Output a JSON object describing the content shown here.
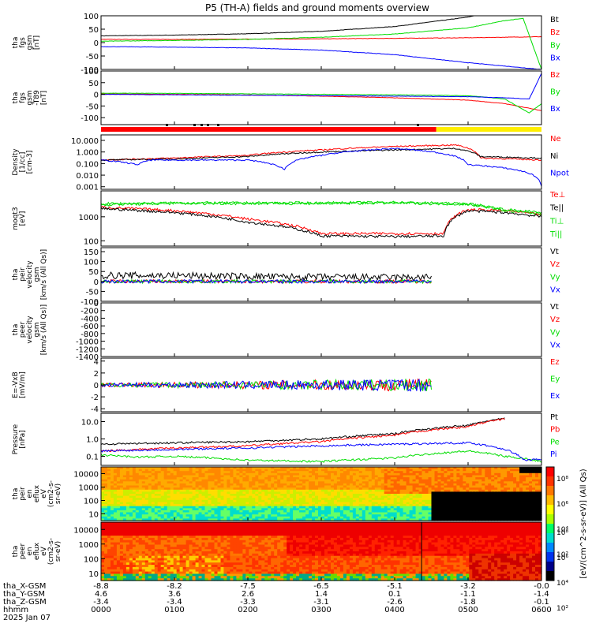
{
  "title": "P5 (TH-A) fields and ground moments overview",
  "colors": {
    "black": "#000000",
    "red": "#ff0000",
    "green": "#00dd00",
    "blue": "#0000ff",
    "yellow": "#ffee00"
  },
  "chart_data": [
    {
      "type": "line",
      "name": "fgs",
      "ylabel": [
        "tha",
        "fgs",
        "gsm",
        "[nT]"
      ],
      "yticks": [
        "100",
        "50",
        "0",
        "-50",
        "-100"
      ],
      "ylim": [
        -100,
        100
      ],
      "series": [
        {
          "name": "Bt",
          "color": "#000000",
          "x": [
            0,
            60,
            120,
            180,
            240,
            300,
            360
          ],
          "values": [
            25,
            28,
            33,
            42,
            60,
            95,
            160
          ]
        },
        {
          "name": "Bz",
          "color": "#ff0000",
          "x": [
            0,
            60,
            120,
            180,
            240,
            300,
            360
          ],
          "values": [
            12,
            12,
            13,
            14,
            16,
            18,
            22
          ]
        },
        {
          "name": "By",
          "color": "#00dd00",
          "x": [
            0,
            60,
            120,
            180,
            240,
            300,
            330,
            345,
            360
          ],
          "values": [
            5,
            8,
            12,
            20,
            32,
            55,
            82,
            90,
            -100
          ]
        },
        {
          "name": "Bx",
          "color": "#0000ff",
          "x": [
            0,
            60,
            120,
            180,
            240,
            300,
            360
          ],
          "values": [
            -15,
            -17,
            -20,
            -28,
            -45,
            -75,
            -100
          ]
        }
      ]
    },
    {
      "type": "line",
      "name": "fgs-dsl",
      "ylabel": [
        "tha",
        "fgs",
        "gsm",
        "-T89",
        "[nT]"
      ],
      "yticks": [
        "100",
        "50",
        "0",
        "-50",
        "-100"
      ],
      "ylim": [
        -130,
        100
      ],
      "series": [
        {
          "name": "Bz",
          "color": "#ff0000",
          "x": [
            0,
            60,
            120,
            180,
            240,
            300,
            330,
            350,
            360
          ],
          "values": [
            2,
            0,
            -3,
            -8,
            -15,
            -25,
            -40,
            -60,
            -70
          ]
        },
        {
          "name": "By",
          "color": "#00dd00",
          "x": [
            0,
            60,
            120,
            180,
            240,
            300,
            330,
            350,
            360
          ],
          "values": [
            5,
            4,
            2,
            0,
            -2,
            -6,
            -20,
            -80,
            -40
          ]
        },
        {
          "name": "Bx",
          "color": "#0000ff",
          "x": [
            0,
            60,
            120,
            180,
            240,
            300,
            330,
            350,
            360
          ],
          "values": [
            0,
            -2,
            -4,
            -6,
            -8,
            -10,
            -15,
            -20,
            90
          ]
        }
      ]
    },
    {
      "type": "line",
      "name": "density",
      "ylabel": [
        "Density",
        "[1/cc]",
        "[cm-3]"
      ],
      "yticks": [
        "10.000",
        "1.000",
        "0.100",
        "0.010",
        "0.001"
      ],
      "scale": "log",
      "ylim": [
        0.0006,
        30
      ],
      "series": [
        {
          "name": "Ne",
          "color": "#ff0000",
          "x": [
            0,
            60,
            120,
            180,
            240,
            290,
            310,
            360
          ],
          "values": [
            0.2,
            0.3,
            0.5,
            1.5,
            3.0,
            4.0,
            0.3,
            0.2
          ]
        },
        {
          "name": "Ni",
          "color": "#000000",
          "x": [
            0,
            60,
            120,
            180,
            240,
            290,
            310,
            360
          ],
          "values": [
            0.2,
            0.25,
            0.4,
            1.0,
            1.5,
            2.0,
            0.4,
            0.3
          ]
        },
        {
          "name": "Npot",
          "color": "#0000ff",
          "x": [
            0,
            30,
            40,
            60,
            120,
            150,
            180,
            240,
            300,
            360
          ],
          "values": [
            0.2,
            0.08,
            0.2,
            0.2,
            0.2,
            0.03,
            0.5,
            2.0,
            0.08,
            0.001
          ]
        }
      ]
    },
    {
      "type": "line",
      "name": "temperature",
      "ylabel": [
        "moqt3",
        "[eV]"
      ],
      "yticks": [
        "1000",
        "100"
      ],
      "scale": "log",
      "ylim": [
        60,
        12000
      ],
      "series": [
        {
          "name": "Te⊥",
          "color": "#ff0000",
          "x": [
            0,
            60,
            120,
            180,
            240,
            280,
            300,
            330,
            360
          ],
          "values": [
            2500,
            1800,
            800,
            200,
            200,
            200,
            2000,
            1800,
            1200
          ]
        },
        {
          "name": "Te||",
          "color": "#000000",
          "x": [
            0,
            60,
            120,
            180,
            240,
            280,
            300,
            330,
            360
          ],
          "values": [
            2200,
            1500,
            600,
            160,
            150,
            160,
            1800,
            1500,
            1000
          ]
        },
        {
          "name": "Ti⊥",
          "color": "#00dd00",
          "x": [
            0,
            60,
            120,
            180,
            240,
            300,
            330,
            360
          ],
          "values": [
            3500,
            3800,
            3800,
            3800,
            4000,
            3500,
            2000,
            1500
          ]
        },
        {
          "name": "Ti||",
          "color": "#00dd00",
          "x": [
            0,
            60,
            120,
            180,
            240,
            300,
            330,
            360
          ],
          "values": [
            3200,
            3600,
            3600,
            3600,
            3800,
            3300,
            1800,
            1300
          ]
        }
      ]
    },
    {
      "type": "line",
      "name": "peir-velocity",
      "ylabel": [
        "tha",
        "peir",
        "velocity",
        "gsm",
        "[km/s (All Qs)]"
      ],
      "yticks": [
        "150",
        "100",
        "50",
        "0",
        "-50",
        "-100"
      ],
      "ylim": [
        -100,
        170
      ],
      "series": [
        {
          "name": "Vt",
          "color": "#000000",
          "x": [
            0,
            60,
            120,
            180,
            240,
            270
          ],
          "values": [
            30,
            30,
            25,
            22,
            20,
            20
          ]
        },
        {
          "name": "Vz",
          "color": "#ff0000",
          "x": [
            0,
            60,
            120,
            180,
            240,
            270
          ],
          "values": [
            0,
            0,
            0,
            0,
            0,
            0
          ]
        },
        {
          "name": "Vy",
          "color": "#00dd00",
          "x": [
            0,
            60,
            120,
            180,
            240,
            270
          ],
          "values": [
            0,
            0,
            0,
            0,
            0,
            0
          ]
        },
        {
          "name": "Vx",
          "color": "#0000ff",
          "x": [
            0,
            60,
            120,
            180,
            240,
            270
          ],
          "values": [
            0,
            0,
            0,
            0,
            0,
            0
          ]
        }
      ]
    },
    {
      "type": "line",
      "name": "peer-velocity",
      "ylabel": [
        "tha",
        "peer",
        "velocity",
        "gsm",
        "[km/s (All Qs)]"
      ],
      "yticks": [
        "0",
        "-200",
        "-400",
        "-600",
        "-800",
        "-1000",
        "-1200",
        "-1400"
      ],
      "ylim": [
        -1400,
        0
      ],
      "series": [
        {
          "name": "Vt",
          "color": "#000000",
          "x": [],
          "values": []
        },
        {
          "name": "Vz",
          "color": "#ff0000",
          "x": [],
          "values": []
        },
        {
          "name": "Vy",
          "color": "#00dd00",
          "x": [],
          "values": []
        },
        {
          "name": "Vx",
          "color": "#0000ff",
          "x": [],
          "values": []
        }
      ]
    },
    {
      "type": "line",
      "name": "efield",
      "ylabel": [
        "E=-VxB",
        "[mV/m]"
      ],
      "yticks": [
        "4",
        "2",
        "0",
        "-2",
        "-4"
      ],
      "ylim": [
        -4.5,
        4.5
      ],
      "series": [
        {
          "name": "Ez",
          "color": "#ff0000",
          "x": [
            0,
            60,
            120,
            180,
            240,
            270
          ],
          "values": [
            0,
            0,
            0,
            0,
            0,
            0
          ]
        },
        {
          "name": "Ey",
          "color": "#00dd00",
          "x": [
            0,
            60,
            120,
            180,
            240,
            270
          ],
          "values": [
            0,
            0,
            0,
            0,
            0,
            0
          ]
        },
        {
          "name": "Ex",
          "color": "#0000ff",
          "x": [
            0,
            60,
            120,
            180,
            240,
            270
          ],
          "values": [
            0,
            0,
            0,
            0,
            0,
            0
          ]
        }
      ]
    },
    {
      "type": "line",
      "name": "pressure",
      "ylabel": [
        "Pressure",
        "[nPa]"
      ],
      "yticks": [
        "10.0",
        "1.0",
        "0.1"
      ],
      "scale": "log",
      "ylim": [
        0.03,
        30
      ],
      "series": [
        {
          "name": "Pt",
          "color": "#000000",
          "x": [
            0,
            60,
            120,
            180,
            240,
            300,
            330
          ],
          "values": [
            0.5,
            0.6,
            0.7,
            1.0,
            2.0,
            6.0,
            15
          ]
        },
        {
          "name": "Pb",
          "color": "#ff0000",
          "x": [
            0,
            60,
            120,
            180,
            240,
            300,
            330
          ],
          "values": [
            0.2,
            0.3,
            0.4,
            0.7,
            1.6,
            5.0,
            14
          ]
        },
        {
          "name": "Pe",
          "color": "#00dd00",
          "x": [
            0,
            30,
            60,
            120,
            180,
            240,
            300,
            330,
            360
          ],
          "values": [
            0.12,
            0.09,
            0.1,
            0.06,
            0.05,
            0.08,
            0.2,
            0.1,
            0.05
          ]
        },
        {
          "name": "Pi",
          "color": "#0000ff",
          "x": [
            0,
            60,
            120,
            180,
            240,
            300,
            330,
            345,
            360
          ],
          "values": [
            0.2,
            0.25,
            0.3,
            0.4,
            0.5,
            0.6,
            0.25,
            0.06,
            0.07
          ]
        }
      ]
    },
    {
      "type": "heatmap",
      "name": "peir-spectrogram",
      "ylabel": [
        "tha",
        "peir",
        "en",
        "eflux",
        "eV",
        "(cm2-s-",
        "sr-eV)"
      ],
      "yticks": [
        "10000",
        "1000",
        "100",
        "10"
      ]
    },
    {
      "type": "heatmap",
      "name": "peer-spectrogram",
      "ylabel": [
        "tha",
        "peer",
        "en",
        "eflux",
        "eV",
        "(cm2-s-",
        "sr-eV)"
      ],
      "yticks": [
        "10000",
        "1000",
        "100",
        "10"
      ]
    }
  ],
  "legends": [
    [
      "Bt",
      "Bz",
      "By",
      "Bx"
    ],
    [
      "Bz",
      "By",
      "Bx"
    ],
    [
      "Ne",
      "Ni",
      "Npot"
    ],
    [
      "Te⊥",
      "Te||",
      "Ti⊥",
      "Ti||"
    ],
    [
      "Vt",
      "Vz",
      "Vy",
      "Vx"
    ],
    [
      "Vt",
      "Vz",
      "Vy",
      "Vx"
    ],
    [
      "Ez",
      "Ey",
      "Ex"
    ],
    [
      "Pt",
      "Pb",
      "Pe",
      "Pi"
    ]
  ],
  "colorbar": {
    "label": "[eV/(cm^2-s-sr-eV)] (All Qs)",
    "ticks": [
      "10⁸",
      "10⁶",
      "10⁴",
      "10²"
    ]
  },
  "xaxis": {
    "rows": [
      {
        "label": "tha_X-GSM",
        "values": [
          "-8.8",
          "-8.2",
          "-7.5",
          "-6.5",
          "-5.1",
          "-3.2",
          "-0.0"
        ]
      },
      {
        "label": "tha_Y-GSM",
        "values": [
          "4.6",
          "3.6",
          "2.6",
          "1.4",
          "0.1",
          "-1.1",
          "-1.4"
        ]
      },
      {
        "label": "tha_Z-GSM",
        "values": [
          "-3.4",
          "-3.4",
          "-3.3",
          "-3.1",
          "-2.6",
          "-1.8",
          "-0.1"
        ]
      },
      {
        "label": "hhmm",
        "values": [
          "0000",
          "0100",
          "0200",
          "0300",
          "0400",
          "0500",
          "0600"
        ]
      }
    ],
    "date": "2025 Jan 07"
  }
}
